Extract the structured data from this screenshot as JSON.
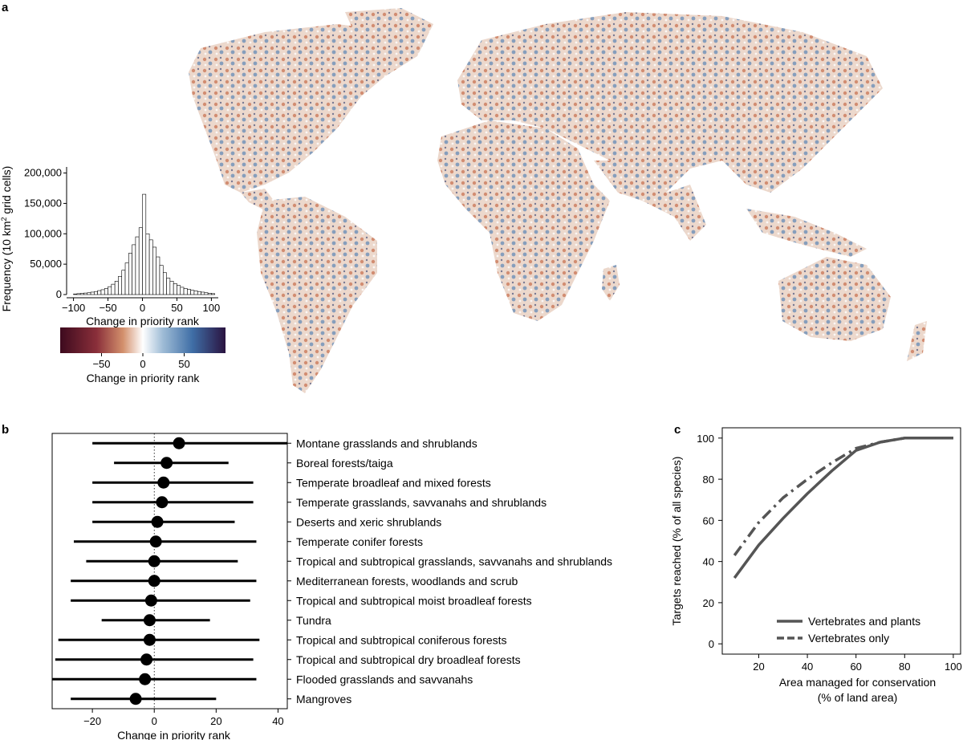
{
  "panel_labels": {
    "a": "a",
    "b": "b",
    "c": "c"
  },
  "colors": {
    "neg_dark": "#3d0a1e",
    "neg_mid": "#c0603f",
    "neutral": "#ffffff",
    "pos_mid": "#4f7fb0",
    "pos_dark": "#2a1340",
    "line": "#555555"
  },
  "chart_data": [
    {
      "id": "histogram",
      "type": "bar",
      "ylabel_main": "Frequency (10 km",
      "ylabel_sup": "2",
      "ylabel_tail": " grid cells)",
      "xlabel": "Change in priority rank",
      "xlim": [
        -110,
        110
      ],
      "ylim": [
        0,
        210000
      ],
      "xticks": [
        -100,
        -50,
        0,
        50,
        100
      ],
      "xtick_labels": [
        "−100",
        "−50",
        "0",
        "50",
        "100"
      ],
      "yticks": [
        0,
        50000,
        100000,
        150000,
        200000
      ],
      "ytick_labels": [
        "0",
        "50,000",
        "100,000",
        "150,000",
        "200,000"
      ],
      "bin_width": 5,
      "bin_starts": [
        -100,
        -95,
        -90,
        -85,
        -80,
        -75,
        -70,
        -65,
        -60,
        -55,
        -50,
        -45,
        -40,
        -35,
        -30,
        -25,
        -20,
        -15,
        -10,
        -5,
        0,
        5,
        10,
        15,
        20,
        25,
        30,
        35,
        40,
        45,
        50,
        55,
        60,
        65,
        70,
        75,
        80,
        85,
        90,
        95,
        100
      ],
      "values": [
        1000,
        1500,
        2000,
        2500,
        3000,
        4000,
        5000,
        6500,
        8000,
        10000,
        13000,
        17000,
        22000,
        30000,
        40000,
        52000,
        68000,
        82000,
        95000,
        110000,
        165000,
        100000,
        90000,
        78000,
        62000,
        48000,
        36000,
        27000,
        22000,
        18000,
        15000,
        12000,
        10000,
        8500,
        7000,
        6000,
        5000,
        4000,
        3000,
        2200,
        1500
      ]
    },
    {
      "id": "colorbar",
      "type": "heatmap",
      "label": "Change in priority rank",
      "range": [
        -100,
        100
      ],
      "ticks": [
        -50,
        0,
        50
      ],
      "tick_labels": [
        "−50",
        "0",
        "50"
      ]
    },
    {
      "id": "biomes",
      "type": "scatter",
      "xlabel": "Change in priority rank",
      "xlim": [
        -33,
        43
      ],
      "xticks": [
        -20,
        0,
        20,
        40
      ],
      "xtick_labels": [
        "−20",
        "0",
        "20",
        "40"
      ],
      "reference_line": 0,
      "categories": [
        "Montane grasslands and shrublands",
        "Boreal forests/taiga",
        "Temperate broadleaf and mixed forests",
        "Temperate grasslands, savvanahs and shrublands",
        "Deserts and xeric shrublands",
        "Temperate conifer forests",
        "Tropical and subtropical grasslands, savvanahs and shrublands",
        "Mediterranean forests, woodlands and scrub",
        "Tropical and subtropical moist broadleaf forests",
        "Tundra",
        "Tropical and subtropical coniferous forests",
        "Tropical and subtropical dry broadleaf forests",
        "Flooded grasslands and savvanahs",
        "Mangroves"
      ],
      "mean": [
        8,
        4,
        3,
        2.5,
        1,
        0.5,
        0,
        0,
        -1,
        -1.5,
        -1.5,
        -2.5,
        -3,
        -6
      ],
      "low": [
        -20,
        -13,
        -20,
        -20,
        -20,
        -26,
        -22,
        -27,
        -27,
        -17,
        -31,
        -32,
        -33,
        -27
      ],
      "high": [
        43,
        24,
        32,
        32,
        26,
        33,
        27,
        33,
        31,
        18,
        34,
        32,
        33,
        20
      ]
    },
    {
      "id": "targets",
      "type": "line",
      "xlabel_line1": "Area managed for conservation",
      "xlabel_line2": "(% of land area)",
      "ylabel": "Targets reached (% of all species)",
      "xlim": [
        5,
        103
      ],
      "ylim": [
        -5,
        105
      ],
      "xticks": [
        20,
        40,
        60,
        80,
        100
      ],
      "yticks": [
        0,
        20,
        40,
        60,
        80,
        100
      ],
      "legend_position": "bottom-right",
      "x": [
        10,
        20,
        30,
        40,
        50,
        60,
        70,
        80,
        90,
        100
      ],
      "series": [
        {
          "name": "Vertebrates and plants",
          "dash": "solid",
          "values": [
            32,
            48,
            61,
            73,
            84,
            94,
            98,
            100,
            100,
            100
          ]
        },
        {
          "name": "Vertebrates only",
          "dash": "dashdot",
          "values": [
            43,
            59,
            71,
            80,
            88,
            95,
            98,
            100,
            100,
            100
          ]
        }
      ]
    }
  ]
}
